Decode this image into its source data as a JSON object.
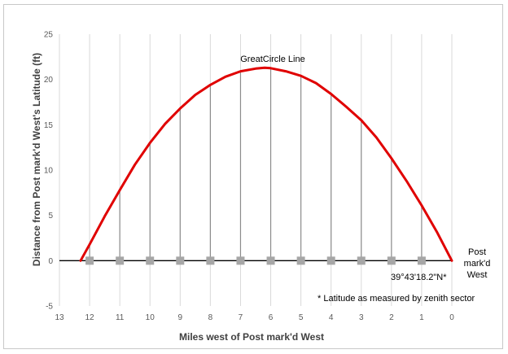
{
  "chart_data": {
    "type": "line",
    "title": "",
    "xlabel": "Miles west of Post mark'd West",
    "ylabel": "Distance from Post mark'd West's Latitude  (ft)",
    "xlim": [
      13,
      0
    ],
    "ylim": [
      -5,
      25
    ],
    "x_reversed": true,
    "x_ticks": [
      13,
      12,
      11,
      10,
      9,
      8,
      7,
      6,
      5,
      4,
      3,
      2,
      1,
      0
    ],
    "y_ticks": [
      -5,
      0,
      5,
      10,
      15,
      20,
      25
    ],
    "grid": "vertical",
    "series": [
      {
        "name": "Great Circle Line",
        "color": "#e00000",
        "x": [
          12.3,
          12,
          11.5,
          11,
          10.5,
          10,
          9.5,
          9,
          8.5,
          8,
          7.5,
          7,
          6.5,
          6.2,
          6,
          5.5,
          5,
          4.5,
          4,
          3.5,
          3,
          2.5,
          2,
          1.5,
          1,
          0.5,
          0
        ],
        "y": [
          0,
          1.8,
          4.9,
          7.8,
          10.6,
          13.0,
          15.1,
          16.8,
          18.3,
          19.4,
          20.3,
          20.9,
          21.2,
          21.3,
          21.25,
          20.9,
          20.4,
          19.6,
          18.4,
          17.0,
          15.5,
          13.6,
          11.3,
          8.8,
          6.1,
          3.2,
          0
        ]
      }
    ],
    "sample_points": {
      "color": "#a6a6a6",
      "x": [
        12,
        11,
        10,
        9,
        8,
        7,
        6,
        5,
        4,
        3,
        2,
        1
      ],
      "y": [
        0,
        0,
        0,
        0,
        0,
        0,
        0,
        0,
        0,
        0,
        0,
        0
      ]
    },
    "drop_lines": {
      "color": "#8c8c8c",
      "x": [
        12,
        11,
        10,
        9,
        8,
        7,
        6,
        5,
        4,
        3,
        2,
        1
      ],
      "y": [
        1.8,
        7.8,
        13.0,
        16.8,
        19.4,
        20.9,
        21.25,
        20.4,
        18.4,
        15.5,
        11.3,
        6.1
      ]
    },
    "annotations": {
      "curve_label": "GreatCircle Line",
      "post_label": [
        "Post",
        "mark'd",
        "West"
      ],
      "latitude_label": "39°43'18.2\"N*",
      "footnote": "* Latitude as measured by zenith sector"
    }
  }
}
